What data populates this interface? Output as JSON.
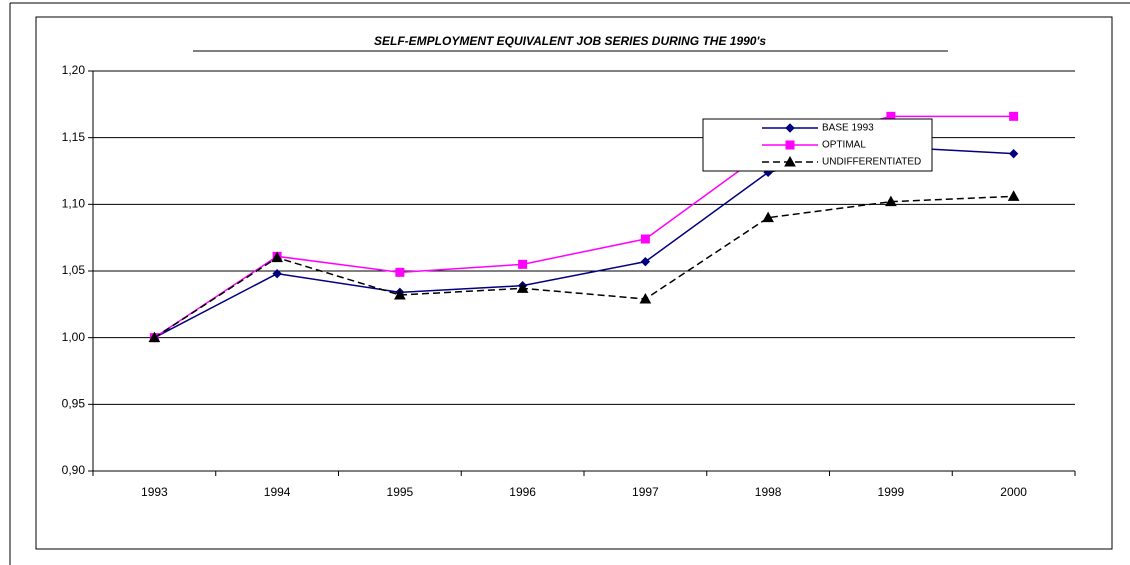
{
  "chart_data": {
    "type": "line",
    "title": "SELF-EMPLOYMENT EQUIVALENT JOB SERIES DURING THE 1990's",
    "categories": [
      "1993",
      "1994",
      "1995",
      "1996",
      "1997",
      "1998",
      "1999",
      "2000"
    ],
    "series": [
      {
        "name": "BASE 1993",
        "color": "#000080",
        "marker": "diamond",
        "dashed": false,
        "values": [
          1.0,
          1.048,
          1.034,
          1.039,
          1.057,
          1.124,
          1.143,
          1.138
        ]
      },
      {
        "name": "OPTIMAL",
        "color": "#ff00ff",
        "marker": "square",
        "dashed": false,
        "values": [
          1.0,
          1.061,
          1.049,
          1.055,
          1.074,
          1.141,
          1.166,
          1.166
        ]
      },
      {
        "name": "UNDIFFERENTIATED",
        "color": "#000000",
        "marker": "triangle",
        "dashed": true,
        "values": [
          1.0,
          1.06,
          1.032,
          1.037,
          1.029,
          1.09,
          1.102,
          1.106
        ]
      }
    ],
    "ylim": [
      0.9,
      1.2
    ],
    "yticks": [
      {
        "value": 0.9,
        "label": "0,90"
      },
      {
        "value": 0.95,
        "label": "0,95"
      },
      {
        "value": 1.0,
        "label": "1,00"
      },
      {
        "value": 1.05,
        "label": "1,05"
      },
      {
        "value": 1.1,
        "label": "1,10"
      },
      {
        "value": 1.15,
        "label": "1,15"
      },
      {
        "value": 1.2,
        "label": "1,20"
      }
    ],
    "grid": true,
    "legend": "upper right"
  }
}
